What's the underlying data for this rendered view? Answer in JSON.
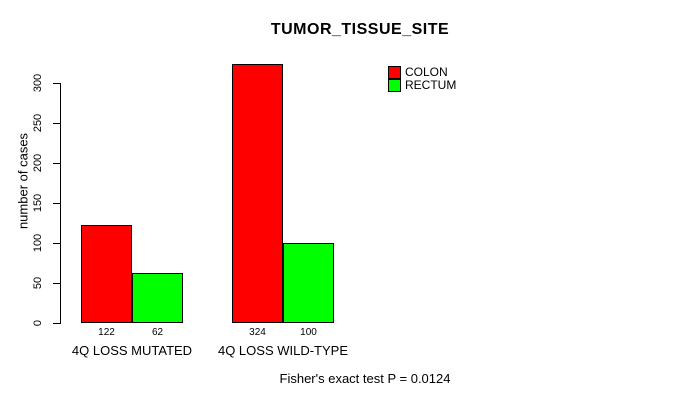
{
  "chart_data": {
    "type": "bar",
    "grouped": true,
    "title": "TUMOR_TISSUE_SITE",
    "ylabel": "number of cases",
    "xlabel": "",
    "categories": [
      "4Q LOSS MUTATED",
      "4Q LOSS WILD-TYPE"
    ],
    "series": [
      {
        "name": "COLON",
        "color": "#ff0000",
        "values": [
          122,
          324
        ]
      },
      {
        "name": "RECTUM",
        "color": "#00ff00",
        "values": [
          62,
          100
        ]
      }
    ],
    "yticks": [
      0,
      50,
      100,
      150,
      200,
      250,
      300
    ],
    "ylim": [
      0,
      330
    ],
    "grid": false,
    "bar_value_labels_shown": true,
    "legend_position": "top-right",
    "annotation": "Fisher's exact test P = 0.0124"
  }
}
